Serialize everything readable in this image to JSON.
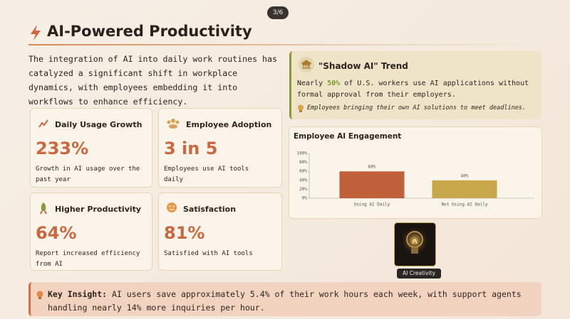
{
  "slide_counter": "3/6",
  "header": {
    "title": "AI-Powered Productivity"
  },
  "intro": "The integration of AI into daily work routines has catalyzed a significant shift in workplace dynamics, with employees embedding it into workflows to enhance efficiency.",
  "stats": [
    {
      "title": "Daily Usage Growth",
      "value": "233%",
      "description": "Growth in AI usage over the past year"
    },
    {
      "title": "Employee Adoption",
      "value": "3 in 5",
      "description": "Employees use AI tools daily"
    },
    {
      "title": "Higher Productivity",
      "value": "64%",
      "description": "Report increased efficiency from AI"
    },
    {
      "title": "Satisfaction",
      "value": "81%",
      "description": "Satisfied with AI tools"
    }
  ],
  "shadow_ai": {
    "title": "\"Shadow AI\" Trend",
    "text_before": "Nearly ",
    "highlight": "50%",
    "text_after": " of U.S. workers use AI applications without formal approval from their employers.",
    "note": "Employees bringing their own AI solutions to meet deadlines."
  },
  "chart_data": {
    "type": "bar",
    "title": "Employee AI Engagement",
    "categories": [
      "Using AI Daily",
      "Not Using AI Daily"
    ],
    "values": [
      60,
      40
    ],
    "value_labels": [
      "60%",
      "40%"
    ],
    "colors": [
      "#c0603a",
      "#c9a84c"
    ],
    "ylim": [
      0,
      100
    ],
    "yticks": [
      {
        "value": 0,
        "label": "0%"
      },
      {
        "value": 20,
        "label": "20%"
      },
      {
        "value": 40,
        "label": "40%"
      },
      {
        "value": 60,
        "label": "60%"
      },
      {
        "value": 80,
        "label": "80%"
      },
      {
        "value": 100,
        "label": "100%"
      }
    ]
  },
  "image": {
    "caption": "AI Creativity"
  },
  "key_insight": {
    "label": "Key Insight:",
    "text": " AI users save approximately 5.4% of their work hours each week, with support agents handling nearly 14% more inquiries per hour."
  }
}
